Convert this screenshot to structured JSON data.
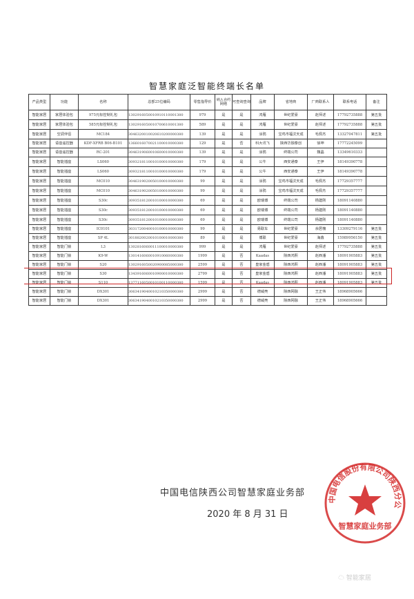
{
  "title": "智慧家庭泛智能终端长名单",
  "columns": [
    "产品类型",
    "功能",
    "名称",
    "总部25位编码",
    "零售指导价",
    "纳入合约网络",
    "可查询查询",
    "品牌",
    "省地商",
    "厂商联系人",
    "联系电话",
    "备注"
  ],
  "rows": [
    [
      "智能家居",
      "家居体验包",
      "975元标控制礼包",
      "1302916050010910110001380",
      "979",
      "是",
      "是",
      "鸿雁",
      "世纪爱豪",
      "赵师述",
      "17792735888",
      "第五批"
    ],
    [
      "智能家居",
      "家居体验包",
      "585元标控制礼包",
      "1302916050010700610001380",
      "589",
      "是",
      "是",
      "鸿雁",
      "世纪爱豪",
      "赵师述",
      "17792735888",
      "第五批"
    ],
    [
      "智能家居",
      "空调伴侣",
      "MC184",
      "3046320010020610200000380",
      "139",
      "是",
      "是",
      "涂鸦",
      "宝鸡市福汶天成",
      "毛佩杰",
      "13327047811",
      "第五批"
    ],
    [
      "智能家居",
      "语音遥控器",
      "KDF-XFRB B06-B101",
      "1366016070021100010000380",
      "129",
      "是",
      "否",
      "科大讯飞",
      "陕西华融泰创",
      "徐坤",
      "17772245099",
      ""
    ],
    [
      "智能家居",
      "语音遥控器",
      "RC-201",
      "3046319060010600010000380",
      "139",
      "是",
      "是",
      "涂鸦",
      "终端公司",
      "魏晶",
      "13349610333",
      ""
    ],
    [
      "智能家居",
      "智能插座",
      "LS060",
      "3093218110010100010000380",
      "179",
      "是",
      "是",
      "公牛",
      "西安通泰",
      "王伊",
      "18149390778",
      ""
    ],
    [
      "智能家居",
      "智能插座",
      "LS060",
      "3093218110010100010000380",
      "179",
      "是",
      "是",
      "公牛",
      "西安通泰",
      "王伊",
      "18149390778",
      ""
    ],
    [
      "智能家居",
      "智能插座",
      "MC010",
      "3046319020050100010000380",
      "99",
      "是",
      "是",
      "涂鸦",
      "宝鸡市福汶天成",
      "毛佩杰",
      "17729357777",
      ""
    ],
    [
      "智能家居",
      "智能插座",
      "MC010",
      "3046319020050100010000380",
      "99",
      "是",
      "是",
      "涂鸦",
      "宝鸡市福汶天成",
      "毛佩杰",
      "17729357777",
      ""
    ],
    [
      "智能家居",
      "智能插座",
      "S30c",
      "3093518120010100010000380",
      "69",
      "是",
      "是",
      "欧瑞博",
      "终端公司",
      "杨建刚",
      "18091140880",
      ""
    ],
    [
      "智能家居",
      "智能插座",
      "S30c",
      "3093518120010100010000380",
      "69",
      "是",
      "是",
      "欧瑞博",
      "终端公司",
      "杨建刚",
      "18091140880",
      ""
    ],
    [
      "智能家居",
      "智能插座",
      "S30c",
      "3093518120010100010000380",
      "69",
      "是",
      "是",
      "欧瑞博",
      "终端公司",
      "杨建刚",
      "18091140880",
      ""
    ],
    [
      "智能家居",
      "智能插座",
      "IC0101",
      "3031720040010100010000380",
      "99",
      "是",
      "是",
      "易联车",
      "世纪爱豪",
      "余居槐",
      "13309279116",
      "第五批"
    ],
    [
      "智能家居",
      "智能插座",
      "SP 4L",
      "3018820020010100010000380",
      "89",
      "是",
      "是",
      "博联",
      "世纪爱豪",
      "海鑫",
      "15989956150",
      "第五批"
    ],
    [
      "智能家居",
      "智能门锁",
      "L3",
      "1302816060011100010000380",
      "999",
      "是",
      "是",
      "鸿雁",
      "世纪爱豪",
      "赵师述",
      "17792735888",
      "第五批"
    ],
    [
      "智能家居",
      "智能门锁",
      "K9-W",
      "1301416060010910060000380",
      "1999",
      "是",
      "否",
      "Kaadas",
      "陕西鸿熙",
      "赵西潘",
      "18091905883",
      "第五批"
    ],
    [
      "智能家居",
      "智能门锁",
      "S20",
      "1302916050020900085000380",
      "2599",
      "是",
      "否",
      "皇家金盾",
      "陕西鸿熙",
      "赵西潘",
      "18091905883",
      "第五批"
    ],
    [
      "智能家居",
      "智能门锁",
      "S30",
      "1343916060010900010000380",
      "2799",
      "是",
      "否",
      "皇家金盾",
      "陕西鸿熙",
      "赵西潘",
      "18091905883",
      "第五批"
    ],
    [
      "智能家居",
      "智能门锁",
      "S110",
      "1377116050010100110000380",
      "1599",
      "是",
      "否",
      "Kaadas",
      "陕西鸿熙",
      "赵西潘",
      "18091905883",
      "第五批"
    ],
    [
      "智能家居",
      "智能门锁",
      "DX301",
      "3063419040010210350000380",
      "2999",
      "是",
      "否",
      "德威壳",
      "陕西网融",
      "王正伟",
      "18968905666",
      ""
    ],
    [
      "智能家居",
      "智能门锁",
      "DX301",
      "3063419040010210350000380",
      "2999",
      "是",
      "否",
      "德威壳",
      "陕西网融",
      "王正伟",
      "18968905666",
      ""
    ]
  ],
  "highlighted_rows": [
    16,
    17
  ],
  "signature": "中国电信陕西公司智慧家庭业务部",
  "date": "2020 年 8 月 31 日",
  "seal": {
    "outer_text": "中国电信股份有限公司陕西分公司",
    "inner_text": "智慧家庭业务部",
    "color": "#d42a2a"
  },
  "watermark": "智能家居"
}
